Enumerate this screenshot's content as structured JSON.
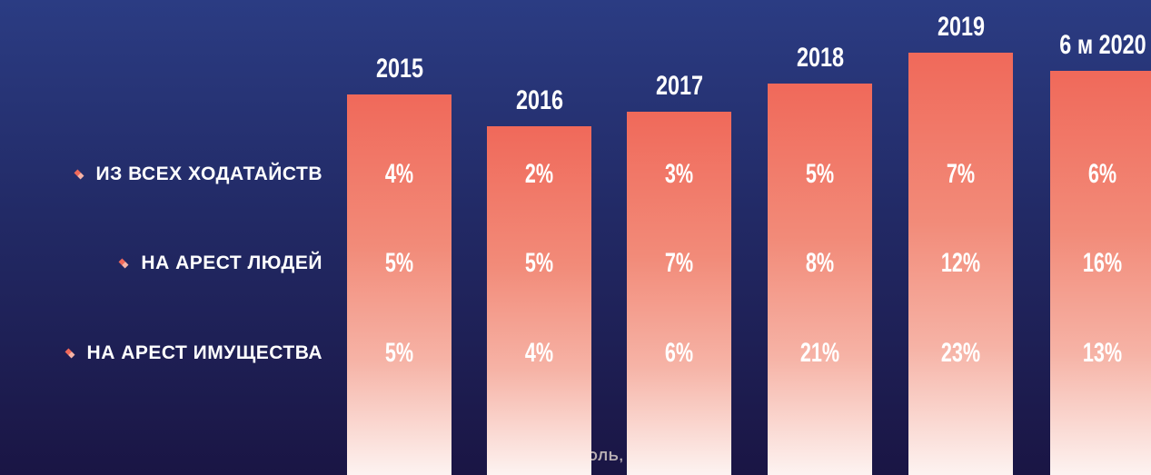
{
  "rows": [
    "ИЗ ВСЕХ ХОДАТАЙСТВ",
    "НА АРЕСТ ЛЮДЕЙ",
    "НА АРЕСТ ИМУЩЕСТВА"
  ],
  "columns": [
    {
      "header": "2015",
      "cells": [
        "4%",
        "5%",
        "5%"
      ]
    },
    {
      "header": "2016",
      "cells": [
        "2%",
        "5%",
        "4%"
      ]
    },
    {
      "header": "2017",
      "cells": [
        "3%",
        "7%",
        "6%"
      ]
    },
    {
      "header": "2018",
      "cells": [
        "5%",
        "8%",
        "21%"
      ]
    },
    {
      "header": "2019",
      "cells": [
        "7%",
        "12%",
        "23%"
      ]
    },
    {
      "header": "6 м 2020",
      "cells": [
        "6%",
        "16%",
        "13%"
      ]
    }
  ],
  "footer": "ИЮЛЬ, 2020"
}
